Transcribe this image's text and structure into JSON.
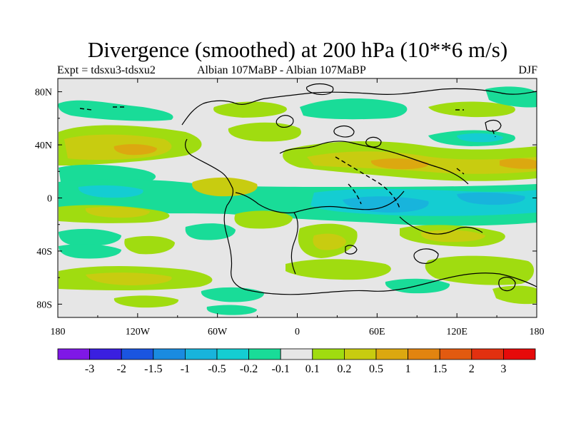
{
  "title": "Divergence (smoothed) at 200 hPa (10**6 m/s)",
  "subtitle": {
    "left": "Expt = tdsxu3-tdsxu2",
    "center": "Albian  107MaBP - Albian  107MaBP",
    "right": "DJF"
  },
  "map": {
    "x_ticks": [
      "180",
      "120W",
      "60W",
      "0",
      "60E",
      "120E",
      "180"
    ],
    "y_ticks": [
      "80N",
      "40N",
      "0",
      "40S",
      "80S"
    ],
    "lon_range": [
      -180,
      180
    ],
    "lat_range": [
      -90,
      90
    ]
  },
  "colorbar": {
    "labels": [
      "-3",
      "-2",
      "-1.5",
      "-1",
      "-0.5",
      "-0.2",
      "-0.1",
      "0.1",
      "0.2",
      "0.5",
      "1",
      "1.5",
      "2",
      "3"
    ],
    "colors": [
      "#7f18e6",
      "#3a1fe0",
      "#1a55e0",
      "#1a8be0",
      "#18b4dc",
      "#14cdd2",
      "#19dc98",
      "#e6e6e6",
      "#a0dc10",
      "#c8cc10",
      "#dca810",
      "#e28410",
      "#e25a10",
      "#e23010",
      "#e60a0a"
    ]
  },
  "palette": {
    "background": "#e6e6e6",
    "coastline": "#000000"
  }
}
